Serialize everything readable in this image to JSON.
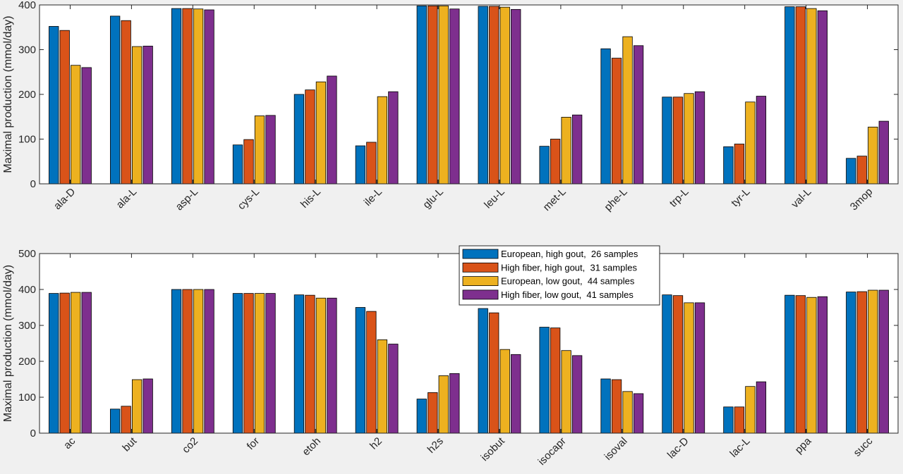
{
  "colors": {
    "background": "#f0f0f0",
    "axes_bg": "#ffffff",
    "axis": "#262626",
    "series": [
      "#0072BD",
      "#D95319",
      "#EDB120",
      "#7E2F8E"
    ]
  },
  "legend": {
    "location": "top-center of lower axes",
    "entries": [
      "European, high gout,  26 samples",
      "High fiber, high gout,  31 samples",
      "European, low gout,  44 samples",
      "High fiber, low gout,  41 samples"
    ]
  },
  "chart_data": [
    {
      "type": "bar",
      "title": "",
      "xlabel": "",
      "ylabel": "Maximal production (mmol/day)",
      "ylim": [
        0,
        400
      ],
      "yticks": [
        0,
        100,
        200,
        300,
        400
      ],
      "grid": false,
      "categories": [
        "ala-D",
        "ala-L",
        "asp-L",
        "cys-L",
        "his-L",
        "ile-L",
        "glu-L",
        "leu-L",
        "met-L",
        "phe-L",
        "trp-L",
        "tyr-L",
        "val-L",
        "3mop"
      ],
      "series": [
        {
          "name": "European, high gout,  26 samples",
          "values": [
            352,
            375,
            392,
            87,
            200,
            85,
            398,
            397,
            84,
            302,
            194,
            83,
            396,
            57
          ]
        },
        {
          "name": "High fiber, high gout,  31 samples",
          "values": [
            343,
            365,
            392,
            99,
            210,
            93,
            398,
            397,
            100,
            281,
            194,
            89,
            396,
            62
          ]
        },
        {
          "name": "European, low gout,  44 samples",
          "values": [
            265,
            307,
            391,
            152,
            228,
            195,
            398,
            395,
            149,
            329,
            202,
            183,
            392,
            127
          ]
        },
        {
          "name": "High fiber, low gout,  41 samples",
          "values": [
            260,
            308,
            389,
            153,
            241,
            206,
            391,
            390,
            154,
            309,
            206,
            196,
            387,
            140
          ]
        }
      ]
    },
    {
      "type": "bar",
      "title": "",
      "xlabel": "",
      "ylabel": "Maximal production (mmol/day)",
      "ylim": [
        0,
        500
      ],
      "yticks": [
        0,
        100,
        200,
        300,
        400,
        500
      ],
      "grid": false,
      "categories": [
        "ac",
        "but",
        "co2",
        "for",
        "etoh",
        "h2",
        "h2s",
        "isobut",
        "isocapr",
        "isoval",
        "lac-D",
        "lac-L",
        "ppa",
        "succ"
      ],
      "series": [
        {
          "name": "European, high gout,  26 samples",
          "values": [
            389,
            67,
            400,
            389,
            385,
            350,
            95,
            347,
            295,
            151,
            385,
            73,
            384,
            393
          ]
        },
        {
          "name": "High fiber, high gout,  31 samples",
          "values": [
            390,
            75,
            400,
            389,
            384,
            339,
            113,
            335,
            293,
            149,
            383,
            73,
            383,
            394
          ]
        },
        {
          "name": "European, low gout,  44 samples",
          "values": [
            392,
            149,
            400,
            389,
            376,
            260,
            160,
            233,
            230,
            116,
            363,
            130,
            378,
            398
          ]
        },
        {
          "name": "High fiber, low gout,  41 samples",
          "values": [
            392,
            151,
            400,
            389,
            376,
            248,
            166,
            219,
            216,
            110,
            363,
            143,
            380,
            398
          ]
        }
      ]
    }
  ]
}
